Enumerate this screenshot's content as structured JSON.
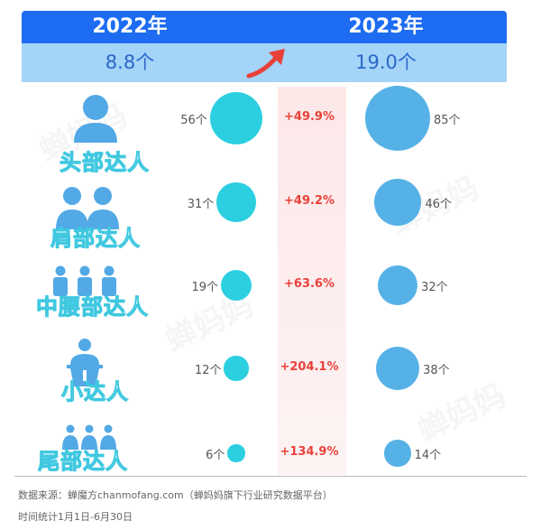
{
  "header": {
    "year_2022": "2022年",
    "year_2023": "2023年",
    "avg_2022": "8.8个",
    "avg_2023": "19.0个"
  },
  "chart_data": {
    "type": "bubble",
    "categories": [
      "头部达人",
      "肩部达人",
      "中腰部达人",
      "小达人",
      "尾部达人"
    ],
    "series": [
      {
        "name": "2022年",
        "values": [
          56,
          31,
          19,
          12,
          6
        ],
        "labels": [
          "56个",
          "31个",
          "19个",
          "12个",
          "6个"
        ]
      },
      {
        "name": "2023年",
        "values": [
          85,
          46,
          32,
          38,
          14
        ],
        "labels": [
          "85个",
          "46个",
          "32个",
          "38个",
          "14个"
        ]
      }
    ],
    "growth": [
      "+49.9%",
      "+49.2%",
      "+63.6%",
      "+204.1%",
      "+134.9%"
    ],
    "colors": {
      "y2022": "#2ccfe0",
      "y2023": "#56b2e6",
      "header": "#1d6cf2",
      "growth": "#e8413a"
    }
  },
  "footer": {
    "source": "数据来源：蝉魔方chanmofang.com（蝉妈妈旗下行业研究数据平台）",
    "period": "时间统计1月1日-6月30日"
  }
}
